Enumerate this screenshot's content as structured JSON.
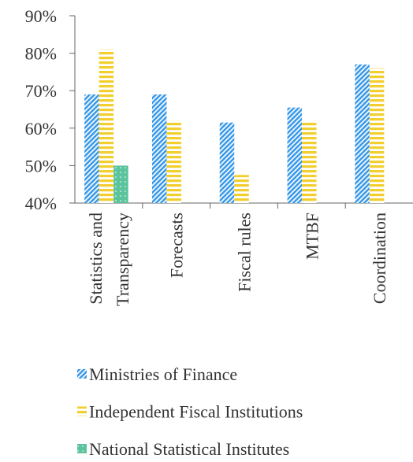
{
  "chart_data": {
    "type": "bar",
    "categories": [
      "Statistics and Transparency",
      "Forecasts",
      "Fiscal rules",
      "MTBF",
      "Coordination"
    ],
    "series": [
      {
        "name": "Ministries of Finance",
        "color": "#3d9be9",
        "values": [
          69,
          69,
          61.5,
          65.5,
          77
        ]
      },
      {
        "name": "Independent Fiscal Institutions",
        "color": "#f2cf2e",
        "values": [
          81,
          62,
          47.5,
          62,
          76
        ]
      },
      {
        "name": "National Statistical Institutes",
        "color": "#5bc49c",
        "values": [
          50,
          null,
          null,
          null,
          null
        ]
      }
    ],
    "ylim": [
      40,
      90
    ],
    "yticks": [
      {
        "value": 40,
        "label": "40%"
      },
      {
        "value": 50,
        "label": "50%"
      },
      {
        "value": 60,
        "label": "60%"
      },
      {
        "value": 70,
        "label": "70%"
      },
      {
        "value": 80,
        "label": "80%"
      },
      {
        "value": 90,
        "label": "90%"
      }
    ],
    "grid": false
  }
}
